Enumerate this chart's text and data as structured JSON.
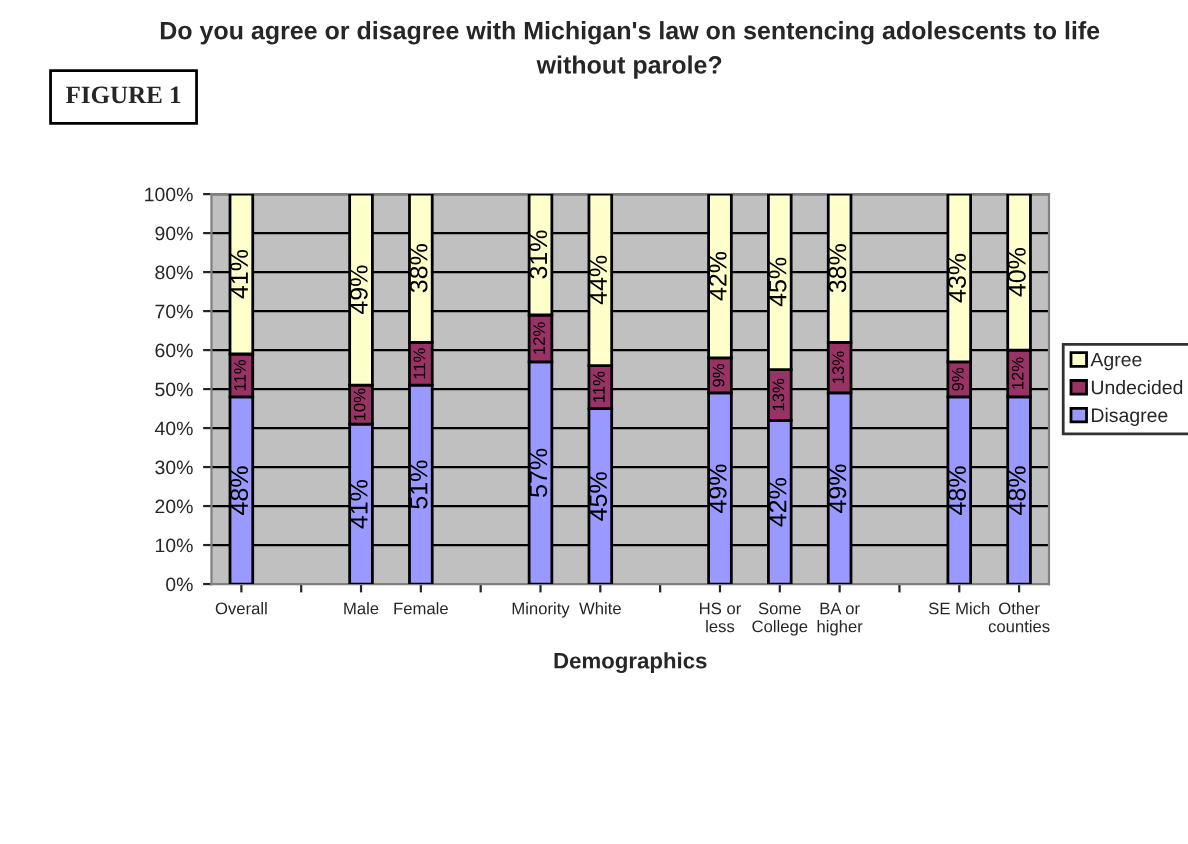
{
  "chart_data": {
    "type": "bar",
    "stacked": true,
    "title": "Do you agree or disagree with Michigan's law on sentencing adolescents to life\nwithout parole?",
    "xlabel": "Demographics",
    "annotations": [
      "FIGURE 1"
    ],
    "categories": [
      "Overall",
      null,
      "Male",
      "Female",
      null,
      "Minority",
      "White",
      null,
      "HS or\nless",
      "Some\nCollege",
      "BA or\nhigher",
      null,
      "SE Mich",
      "Other\ncounties"
    ],
    "series": [
      {
        "name": "Disagree",
        "color": "#9999ff",
        "values": [
          48,
          null,
          41,
          51,
          null,
          57,
          45,
          null,
          49,
          42,
          49,
          null,
          48,
          48
        ],
        "value_labels": [
          "48%",
          null,
          "41%",
          "51%",
          null,
          "57%",
          "45%",
          null,
          "49%",
          "42%",
          "49%",
          null,
          "48%",
          "48%"
        ]
      },
      {
        "name": "Undecided",
        "color": "#993366",
        "values": [
          11,
          null,
          10,
          11,
          null,
          12,
          11,
          null,
          9,
          13,
          13,
          null,
          9,
          12
        ],
        "value_labels": [
          "11%",
          null,
          "10%",
          "11%",
          null,
          "12%",
          "11%",
          null,
          "9%",
          "13%",
          "13%",
          null,
          "9%",
          "12%"
        ]
      },
      {
        "name": "Agree",
        "color": "#ffffcc",
        "values": [
          41,
          null,
          49,
          38,
          null,
          31,
          44,
          null,
          42,
          45,
          38,
          null,
          43,
          40
        ],
        "value_labels": [
          "41%",
          null,
          "49%",
          "38%",
          null,
          "31%",
          "44%",
          null,
          "42%",
          "45%",
          "38%",
          null,
          "43%",
          "40%"
        ]
      }
    ],
    "ylim": [
      0,
      100
    ],
    "yticks": [
      {
        "value": 0,
        "label": "0%"
      },
      {
        "value": 10,
        "label": "10%"
      },
      {
        "value": 20,
        "label": "20%"
      },
      {
        "value": 30,
        "label": "30%"
      },
      {
        "value": 40,
        "label": "40%"
      },
      {
        "value": 50,
        "label": "50%"
      },
      {
        "value": 60,
        "label": "60%"
      },
      {
        "value": 70,
        "label": "70%"
      },
      {
        "value": 80,
        "label": "80%"
      },
      {
        "value": 90,
        "label": "90%"
      },
      {
        "value": 100,
        "label": "100%"
      }
    ],
    "grid": "y",
    "legend": "right"
  }
}
